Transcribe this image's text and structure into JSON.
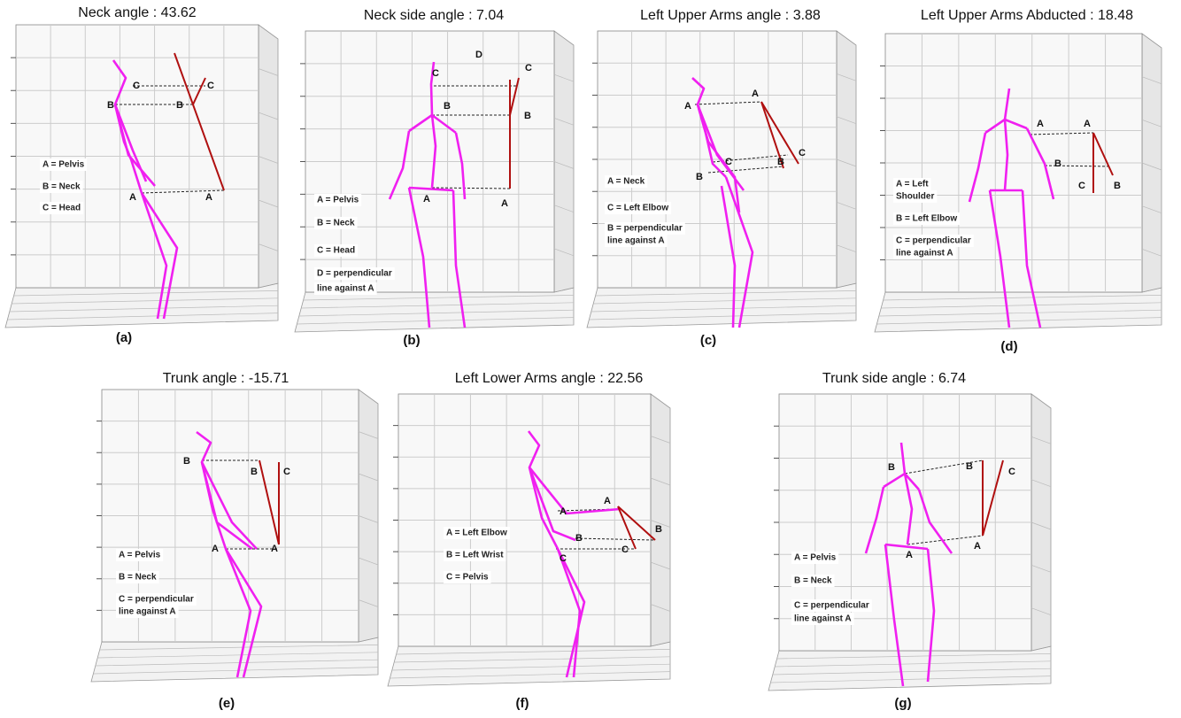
{
  "panels": [
    {
      "title": "Neck angle : 43.62",
      "caption": "(a)",
      "points": [
        "C",
        "C",
        "B",
        "B",
        "A",
        "A"
      ],
      "legend": [
        [
          "A = Pelvis"
        ],
        [
          "B = Neck"
        ],
        [
          "C = Head"
        ]
      ]
    },
    {
      "title": "Neck side angle : 7.04",
      "caption": "(b)",
      "points": [
        "D",
        "C",
        "C",
        "B",
        "B",
        "A",
        "A"
      ],
      "legend": [
        [
          "A = Pelvis"
        ],
        [
          "B = Neck"
        ],
        [
          "C = Head"
        ],
        [
          "D =  perpendicular",
          "line against A"
        ]
      ]
    },
    {
      "title": "Left Upper Arms angle : 3.88",
      "caption": "(c)",
      "points": [
        "A",
        "A",
        "C",
        "C",
        "B",
        "B"
      ],
      "legend": [
        [
          "A = Neck"
        ],
        [
          "C = Left Elbow"
        ],
        [
          "B =  perpendicular",
          "line against A"
        ]
      ]
    },
    {
      "title": "Left Upper Arms Abducted : 18.48",
      "caption": "(d)",
      "points": [
        "A",
        "A",
        "B",
        "C",
        "B"
      ],
      "legend": [
        [
          "A = Left",
          "Shoulder"
        ],
        [
          "B = Left Elbow"
        ],
        [
          "C =  perpendicular",
          "line against A"
        ]
      ]
    },
    {
      "title": "Trunk angle : -15.71",
      "caption": "(e)",
      "points": [
        "B",
        "B",
        "C",
        "A",
        "A"
      ],
      "legend": [
        [
          "A = Pelvis"
        ],
        [
          "B = Neck"
        ],
        [
          "C =  perpendicular",
          "line against A"
        ]
      ]
    },
    {
      "title": "Left Lower Arms angle : 22.56",
      "caption": "(f)",
      "points": [
        "A",
        "A",
        "B",
        "B",
        "C",
        "C"
      ],
      "legend": [
        [
          "A = Left Elbow"
        ],
        [
          "B = Left Wrist"
        ],
        [
          "C = Pelvis"
        ]
      ]
    },
    {
      "title": "Trunk side angle : 6.74",
      "caption": "(g)",
      "points": [
        "B",
        "B",
        "C",
        "A",
        "A"
      ],
      "legend": [
        [
          "A = Pelvis"
        ],
        [
          "B = Neck"
        ],
        [
          "C =  perpendicular",
          "line against A"
        ]
      ]
    }
  ]
}
